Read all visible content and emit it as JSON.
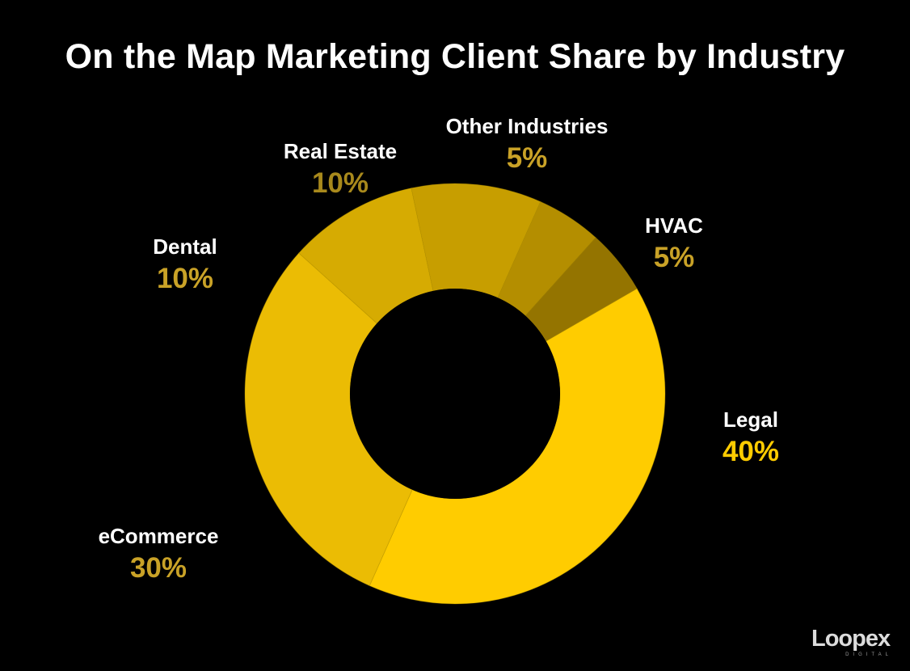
{
  "title": "On the Map Marketing Client Share by Industry",
  "chart_data": {
    "type": "pie",
    "title": "On the Map Marketing Client Share by Industry",
    "donut": true,
    "slices": [
      {
        "label": "Legal",
        "value": 40,
        "value_label": "40%",
        "color": "#ffcc00",
        "label_color": "#ffcc00"
      },
      {
        "label": "eCommerce",
        "value": 30,
        "value_label": "30%",
        "color": "#ebbc04",
        "label_color": "#c9a227"
      },
      {
        "label": "Dental",
        "value": 10,
        "value_label": "10%",
        "color": "#d6ab02",
        "label_color": "#c9a227"
      },
      {
        "label": "Real Estate",
        "value": 10,
        "value_label": "10%",
        "color": "#c79e00",
        "label_color": "#a8891c"
      },
      {
        "label": "Other Industries",
        "value": 5,
        "value_label": "5%",
        "color": "#b48e00",
        "label_color": "#c9a227"
      },
      {
        "label": "HVAC",
        "value": 5,
        "value_label": "5%",
        "color": "#947400",
        "label_color": "#c9a227"
      }
    ]
  },
  "logo": {
    "brand": "Loopex",
    "subtitle": "DIGITAL"
  }
}
